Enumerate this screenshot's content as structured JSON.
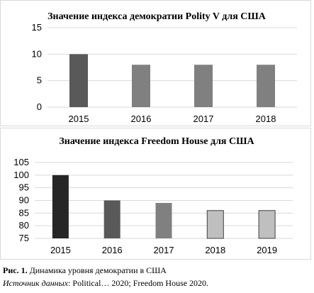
{
  "chart_data": [
    {
      "type": "bar",
      "title": "Значение индекса демократии Polity V для США",
      "categories": [
        "2015",
        "2016",
        "2017",
        "2018"
      ],
      "values": [
        10,
        8,
        8,
        8
      ],
      "colors": [
        "#595959",
        "#808080",
        "#808080",
        "#808080"
      ],
      "ylim": [
        0,
        15
      ],
      "yticks": [
        "0",
        "5",
        "10",
        "15"
      ],
      "grid": true,
      "xlabel": "",
      "ylabel": ""
    },
    {
      "type": "bar",
      "title": "Значение индекса Freedom House для США",
      "categories": [
        "2015",
        "2016",
        "2017",
        "2018",
        "2019"
      ],
      "values": [
        100,
        90,
        89,
        86,
        86
      ],
      "colors": [
        "#262626",
        "#595959",
        "#808080",
        "#bfbfbf",
        "#bfbfbf"
      ],
      "ylim": [
        75,
        105
      ],
      "yticks": [
        "75",
        "80",
        "85",
        "90",
        "95",
        "100",
        "105"
      ],
      "grid": true,
      "xlabel": "",
      "ylabel": ""
    }
  ],
  "caption": {
    "label": "Рис. 1.",
    "text": " Динамика уровня демократии в США",
    "source_label": "Источник данных",
    "source_text": ": Political… 2020; Freedom House 2020."
  }
}
